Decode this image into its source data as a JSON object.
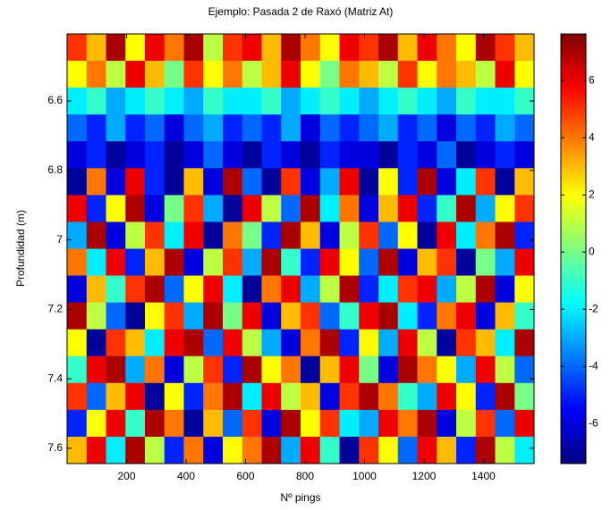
{
  "chart_data": {
    "type": "heatmap",
    "title": "Ejemplo: Pasada 2 de Raxó (Matriz At)",
    "x_label": "Nº pings",
    "y_label": "Profundidad (m)",
    "xlim": [
      0,
      1570
    ],
    "xticks": [
      200,
      400,
      600,
      800,
      1000,
      1200,
      1400
    ],
    "ylim": [
      6.407,
      7.644
    ],
    "yticks": [
      6.6,
      6.8,
      7,
      7.2,
      7.4,
      7.6
    ],
    "y_reversed": true,
    "colormap": "jet",
    "clim": [
      -7.4,
      7.63
    ],
    "cticks": [
      6,
      4,
      2,
      0,
      -2,
      -4,
      -6
    ],
    "z": [
      [
        5,
        3,
        7,
        2,
        6,
        4,
        7,
        1,
        5,
        6,
        3,
        7,
        4,
        2,
        6,
        5,
        7,
        3,
        6,
        4,
        2,
        7,
        5,
        3
      ],
      [
        2,
        4,
        1,
        6,
        3,
        0,
        5,
        2,
        4,
        1,
        3,
        6,
        2,
        0,
        4,
        3,
        1,
        5,
        2,
        4,
        3,
        1,
        6,
        2
      ],
      [
        -2,
        -1,
        -3,
        -2,
        -1,
        -2,
        -3,
        -1,
        -2,
        -2,
        -1,
        -3,
        -2,
        -1,
        -2,
        -3,
        -2,
        -1,
        -2,
        -3,
        -1,
        -2,
        -2,
        -1
      ],
      [
        -4,
        -5,
        -3,
        -5,
        -4,
        -6,
        -4,
        -3,
        -5,
        -4,
        -5,
        -3,
        -6,
        -4,
        -5,
        -4,
        -3,
        -5,
        -4,
        -6,
        -4,
        -5,
        -3,
        -4
      ],
      [
        -6,
        -5,
        -7,
        -6,
        -5,
        -7,
        -6,
        -4,
        -6,
        -7,
        -5,
        -6,
        -7,
        -5,
        -6,
        -6,
        -7,
        -5,
        -6,
        -4,
        -7,
        -6,
        -5,
        -6
      ],
      [
        -7,
        4,
        -6,
        6,
        -5,
        -7,
        3,
        -6,
        7,
        -4,
        -7,
        5,
        -6,
        -3,
        6,
        -7,
        2,
        -5,
        7,
        -6,
        -2,
        5,
        -7,
        3
      ],
      [
        6,
        -5,
        2,
        7,
        -6,
        0,
        5,
        -3,
        -7,
        6,
        1,
        -4,
        7,
        -2,
        4,
        -6,
        3,
        6,
        -5,
        -1,
        7,
        -3,
        2,
        5
      ],
      [
        -3,
        7,
        -6,
        1,
        5,
        -2,
        6,
        -7,
        4,
        0,
        -5,
        7,
        3,
        -6,
        1,
        5,
        -4,
        2,
        -7,
        6,
        -2,
        4,
        7,
        -5
      ],
      [
        4,
        -2,
        6,
        -5,
        3,
        7,
        -6,
        1,
        5,
        -3,
        7,
        -1,
        -5,
        6,
        2,
        -4,
        7,
        -6,
        3,
        5,
        -7,
        0,
        -3,
        6
      ],
      [
        -6,
        3,
        -1,
        5,
        7,
        -4,
        2,
        6,
        -2,
        -7,
        4,
        6,
        -3,
        1,
        7,
        -5,
        -2,
        5,
        6,
        -3,
        1,
        7,
        -6,
        2
      ],
      [
        7,
        1,
        -4,
        -7,
        2,
        5,
        -3,
        7,
        0,
        6,
        -6,
        3,
        5,
        -4,
        -1,
        6,
        7,
        -2,
        -5,
        4,
        6,
        -6,
        3,
        -1
      ],
      [
        2,
        -7,
        5,
        3,
        -2,
        6,
        7,
        -4,
        6,
        1,
        -3,
        -6,
        4,
        7,
        -5,
        2,
        -3,
        6,
        1,
        -7,
        5,
        3,
        -2,
        7
      ],
      [
        -1,
        6,
        7,
        -3,
        4,
        -6,
        1,
        5,
        -5,
        7,
        2,
        4,
        -7,
        3,
        6,
        0,
        -6,
        7,
        4,
        2,
        -3,
        6,
        1,
        -4
      ],
      [
        5,
        -4,
        3,
        6,
        -7,
        2,
        -5,
        4,
        7,
        -2,
        6,
        1,
        3,
        -6,
        5,
        7,
        4,
        -1,
        -3,
        6,
        2,
        -5,
        7,
        0
      ],
      [
        -5,
        2,
        6,
        -1,
        7,
        4,
        -7,
        3,
        -4,
        5,
        -6,
        7,
        2,
        5,
        -2,
        -3,
        6,
        4,
        7,
        -6,
        1,
        5,
        -4,
        6
      ],
      [
        3,
        6,
        -2,
        7,
        1,
        -5,
        4,
        -6,
        2,
        4,
        7,
        -3,
        6,
        -1,
        -7,
        5,
        2,
        -4,
        6,
        3,
        -5,
        7,
        1,
        -2
      ]
    ]
  }
}
